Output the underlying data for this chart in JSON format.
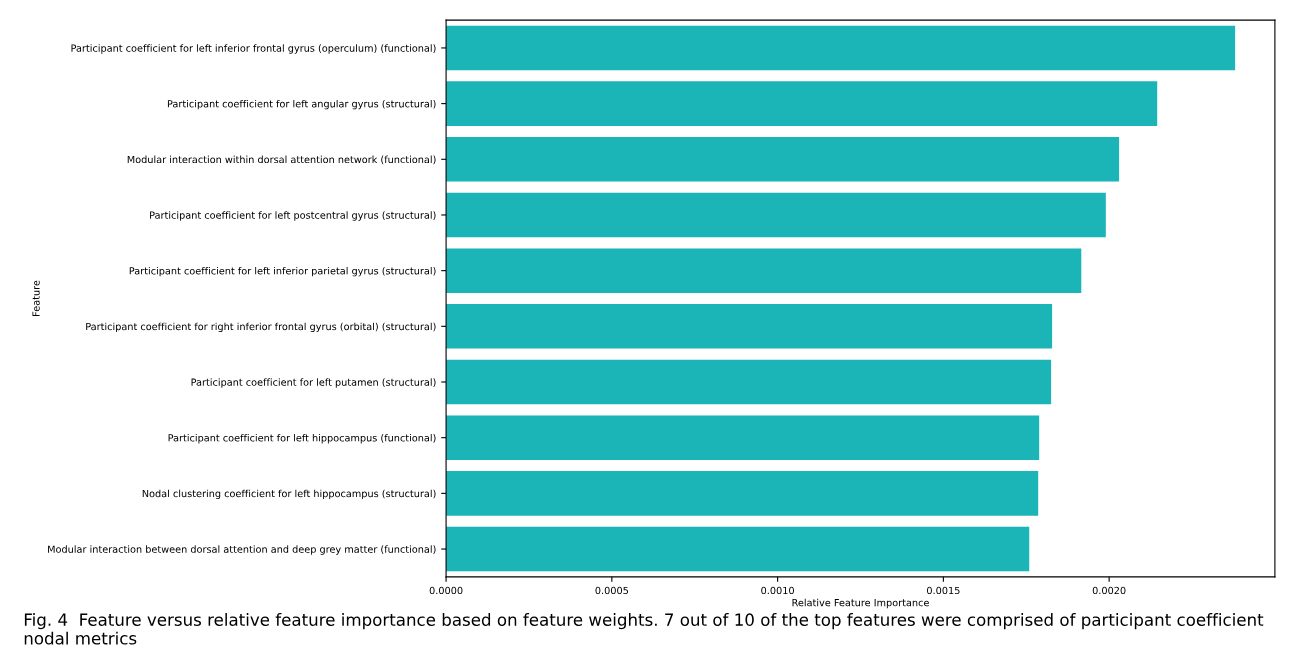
{
  "chart_data": {
    "type": "bar",
    "orientation": "horizontal",
    "xlabel": "Relative Feature Importance",
    "ylabel": "Feature",
    "categories": [
      "Participant coefficient for left inferior frontal gyrus (operculum) (functional)",
      "Participant coefficient for left angular gyrus (structural)",
      "Modular interaction within dorsal attention network (functional)",
      "Participant coefficient for left postcentral gyrus (structural)",
      "Participant coefficient for left inferior parietal gyrus (structural)",
      "Participant coefficient for right inferior frontal gyrus (orbital) (structural)",
      "Participant coefficient for left putamen (structural)",
      "Participant coefficient for left hippocampus (functional)",
      "Nodal clustering coefficient for left hippocampus (structural)",
      "Modular interaction between dorsal attention and deep grey matter (functional)"
    ],
    "values": [
      0.00238,
      0.002145,
      0.00203,
      0.00199,
      0.001916,
      0.001828,
      0.001825,
      0.001789,
      0.001786,
      0.001759
    ],
    "color": "#1bb4b7",
    "xlim": [
      0,
      0.0025
    ],
    "xticks": [
      {
        "value": 0,
        "label": "0.0000"
      },
      {
        "value": 0.0005,
        "label": "0.0005"
      },
      {
        "value": 0.001,
        "label": "0.0010"
      },
      {
        "value": 0.0015,
        "label": "0.0015"
      },
      {
        "value": 0.002,
        "label": "0.0020"
      }
    ],
    "grid": false,
    "annotations": [
      "Fig. 4  Feature versus relative feature importance based on feature weights. 7 out of 10 of the top features were comprised of participant coefficient nodal metrics"
    ]
  }
}
